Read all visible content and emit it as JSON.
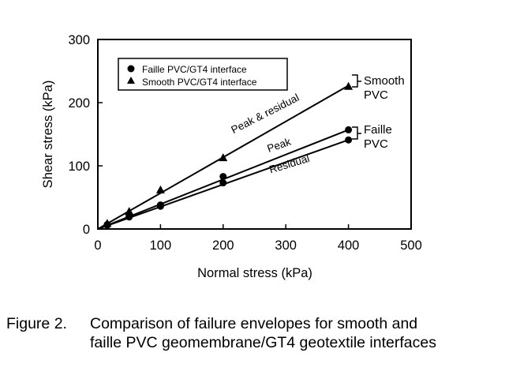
{
  "chart_data": {
    "type": "line",
    "xlabel": "Normal stress (kPa)",
    "ylabel": "Shear stress (kPa)",
    "xlim": [
      0,
      500
    ],
    "ylim": [
      0,
      300
    ],
    "x_ticks": [
      "0",
      "100",
      "200",
      "300",
      "400",
      "500"
    ],
    "y_ticks": [
      "0",
      "100",
      "200",
      "300"
    ],
    "grid": false,
    "legend": {
      "placement": "top-left",
      "entries": [
        "Faille PVC/GT4 interface",
        "Smooth PVC/GT4 interface"
      ]
    },
    "series": [
      {
        "name": "Smooth PVC/GT4 interface",
        "marker": "triangle",
        "points": [
          {
            "x": 15,
            "y": 9
          },
          {
            "x": 50,
            "y": 28
          },
          {
            "x": 100,
            "y": 62
          },
          {
            "x": 200,
            "y": 113
          },
          {
            "x": 400,
            "y": 226
          }
        ]
      },
      {
        "name": "Faille PVC/GT4 interface",
        "marker": "circle",
        "points": [
          {
            "x": 15,
            "y": 7
          },
          {
            "x": 50,
            "y": 21
          },
          {
            "x": 100,
            "y": 38
          },
          {
            "x": 200,
            "y": 83
          },
          {
            "x": 400,
            "y": 157
          },
          {
            "x": 15,
            "y": 6
          },
          {
            "x": 50,
            "y": 19
          },
          {
            "x": 100,
            "y": 36
          },
          {
            "x": 200,
            "y": 73
          },
          {
            "x": 400,
            "y": 141
          }
        ]
      }
    ],
    "envelopes": [
      {
        "label": "Peak & residual",
        "x": [
          0,
          400
        ],
        "y": [
          0,
          227
        ]
      },
      {
        "label": "Peak",
        "x": [
          0,
          400
        ],
        "y": [
          0,
          157
        ]
      },
      {
        "label": "Residual",
        "x": [
          0,
          400
        ],
        "y": [
          0,
          141
        ]
      }
    ],
    "annotations": [
      "Smooth",
      "PVC",
      "Faille",
      "PVC"
    ]
  },
  "caption": {
    "label": "Figure 2.",
    "line1": "Comparison of failure envelopes for smooth and",
    "line2": "faille PVC geomembrane/GT4 geotextile interfaces"
  }
}
